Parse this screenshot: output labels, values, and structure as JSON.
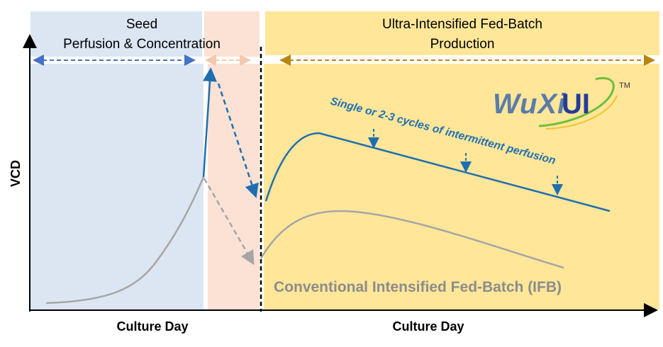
{
  "phases": {
    "seed": {
      "line1": "Seed",
      "line2": "Perfusion & Concentration",
      "color": "#dce6f3"
    },
    "transfer": {
      "color": "#fbe2d5"
    },
    "production": {
      "line1": "Ultra-Intensified Fed-Batch",
      "line2": "Production",
      "color": "#ffe699"
    }
  },
  "axes": {
    "ylabel": "VCD",
    "xlabel_left": "Culture Day",
    "xlabel_right": "Culture Day"
  },
  "annotations": {
    "perfusion": "Single or 2-3 cycles of intermittent perfusion",
    "ifb": "Conventional Intensified Fed-Batch (IFB)"
  },
  "logo": {
    "text": "WuXiUI",
    "tm": "TM"
  },
  "colors": {
    "blue_curve": "#1f6fb0",
    "gray_curve": "#a6a6a6",
    "ifb_text": "#8c8c8c"
  }
}
